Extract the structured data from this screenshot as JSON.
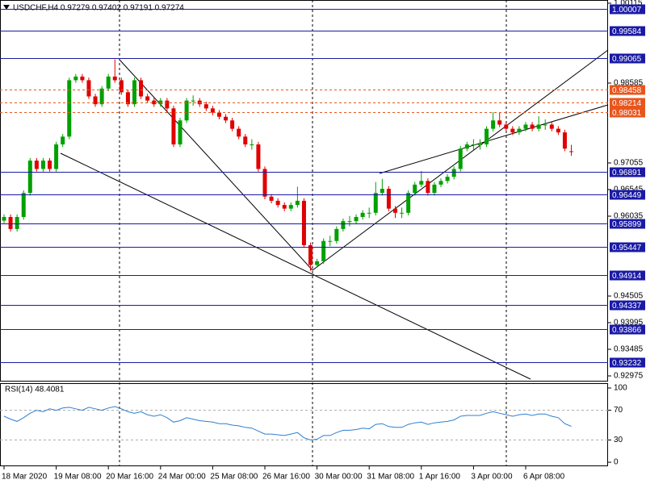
{
  "chart_data": [
    {
      "type": "candlestick",
      "title": "USDCHF,H4  0.97279 0.97402 0.97191 0.97274",
      "categories": [
        "18 Mar 2020",
        null,
        null,
        null,
        null,
        null,
        null,
        null,
        "19 Mar 08:00",
        null,
        null,
        null,
        null,
        null,
        null,
        null,
        "20 Mar 16:00",
        null,
        null,
        null,
        null,
        null,
        null,
        null,
        "24 Mar 00:00",
        null,
        null,
        null,
        null,
        null,
        null,
        null,
        "25 Mar 08:00",
        null,
        null,
        null,
        null,
        null,
        null,
        null,
        "26 Mar 16:00",
        null,
        null,
        null,
        null,
        null,
        null,
        null,
        "30 Mar 00:00",
        null,
        null,
        null,
        null,
        null,
        null,
        null,
        "31 Mar 08:00",
        null,
        null,
        null,
        null,
        null,
        null,
        null,
        "1 Apr 16:00",
        null,
        null,
        null,
        null,
        null,
        null,
        null,
        "3 Apr 00:00",
        null,
        null,
        null,
        null,
        null,
        null,
        null,
        "6 Apr 08:00",
        null,
        null,
        null,
        null,
        null,
        null,
        null
      ],
      "series": [
        {
          "up_color": "#00a000",
          "down_color": "#e00000",
          "open": [
            0.9595,
            0.9602,
            0.9579,
            0.9602,
            0.9648,
            0.971,
            0.9694,
            0.971,
            0.9694,
            0.9741,
            0.9756,
            0.9864,
            0.9871,
            0.9864,
            0.9833,
            0.9818,
            0.9848,
            0.9871,
            0.9864,
            0.9841,
            0.9818,
            0.9864,
            0.9833,
            0.9825,
            0.9818,
            0.9825,
            0.981,
            0.9741,
            0.9787,
            0.9825,
            0.9825,
            0.9818,
            0.981,
            0.9802,
            0.9794,
            0.9787,
            0.9771,
            0.9756,
            0.9741,
            0.9741,
            0.9694,
            0.9641,
            0.9633,
            0.9625,
            0.9618,
            0.9625,
            0.9633,
            0.9548,
            0.951,
            0.9517,
            0.9556,
            0.9556,
            0.9579,
            0.9594,
            0.9594,
            0.9602,
            0.961,
            0.961,
            0.9648,
            0.9656,
            0.9618,
            0.961,
            0.961,
            0.9648,
            0.9664,
            0.9671,
            0.9648,
            0.9664,
            0.9671,
            0.9679,
            0.9694,
            0.9733,
            0.9741,
            0.9741,
            0.9741,
            0.9771,
            0.9787,
            0.9779,
            0.9771,
            0.9764,
            0.9771,
            0.9779,
            0.9771,
            0.9779,
            0.9779,
            0.9771,
            0.9764,
            0.97279
          ],
          "high": [
            0.9607,
            0.9607,
            0.9607,
            0.9653,
            0.9715,
            0.9715,
            0.9715,
            0.9715,
            0.9746,
            0.9761,
            0.9869,
            0.9876,
            0.9876,
            0.9869,
            0.9838,
            0.9853,
            0.9876,
            0.9904,
            0.9869,
            0.9846,
            0.9869,
            0.9869,
            0.9838,
            0.983,
            0.983,
            0.983,
            0.9815,
            0.9792,
            0.983,
            0.9835,
            0.983,
            0.9823,
            0.9815,
            0.9807,
            0.9799,
            0.9792,
            0.9776,
            0.9761,
            0.9751,
            0.9746,
            0.9699,
            0.9646,
            0.9638,
            0.963,
            0.963,
            0.966,
            0.9638,
            0.9553,
            0.9522,
            0.9561,
            0.9566,
            0.9584,
            0.9599,
            0.9604,
            0.9607,
            0.9615,
            0.962,
            0.9669,
            0.9675,
            0.9661,
            0.9623,
            0.962,
            0.9653,
            0.9669,
            0.969,
            0.9676,
            0.9669,
            0.9676,
            0.9684,
            0.9699,
            0.9738,
            0.9746,
            0.9751,
            0.9751,
            0.9776,
            0.9803,
            0.9803,
            0.9784,
            0.9776,
            0.9776,
            0.9784,
            0.9784,
            0.9795,
            0.9789,
            0.9784,
            0.9776,
            0.9769,
            0.97402
          ],
          "low": [
            0.959,
            0.9574,
            0.9574,
            0.9597,
            0.9643,
            0.9689,
            0.9689,
            0.9689,
            0.9689,
            0.9736,
            0.9751,
            0.9859,
            0.9859,
            0.9828,
            0.9813,
            0.9813,
            0.9843,
            0.9859,
            0.9836,
            0.9813,
            0.9813,
            0.9828,
            0.982,
            0.9813,
            0.9813,
            0.9805,
            0.9736,
            0.9736,
            0.9782,
            0.9815,
            0.9813,
            0.9805,
            0.9797,
            0.9789,
            0.9782,
            0.9766,
            0.9751,
            0.9736,
            0.9731,
            0.9689,
            0.9636,
            0.9628,
            0.962,
            0.9613,
            0.9613,
            0.962,
            0.9543,
            0.9499,
            0.9505,
            0.9512,
            0.9546,
            0.9551,
            0.9574,
            0.9584,
            0.9589,
            0.9597,
            0.96,
            0.9605,
            0.9643,
            0.9613,
            0.96,
            0.96,
            0.9605,
            0.9643,
            0.9659,
            0.9643,
            0.9643,
            0.9659,
            0.9666,
            0.9674,
            0.9689,
            0.9728,
            0.9731,
            0.9731,
            0.9736,
            0.9766,
            0.9774,
            0.9766,
            0.9759,
            0.9759,
            0.9766,
            0.9766,
            0.9766,
            0.9769,
            0.9766,
            0.9759,
            0.9728,
            0.97191
          ],
          "close": [
            0.9602,
            0.9579,
            0.9602,
            0.9648,
            0.971,
            0.9694,
            0.971,
            0.9694,
            0.9741,
            0.9756,
            0.9864,
            0.9871,
            0.9864,
            0.9833,
            0.9818,
            0.9848,
            0.9871,
            0.9864,
            0.9841,
            0.9818,
            0.9864,
            0.9833,
            0.9825,
            0.9818,
            0.9825,
            0.981,
            0.9741,
            0.9787,
            0.9825,
            0.9825,
            0.9818,
            0.981,
            0.9802,
            0.9794,
            0.9787,
            0.9771,
            0.9756,
            0.9741,
            0.9741,
            0.9694,
            0.9641,
            0.9633,
            0.9625,
            0.9618,
            0.9625,
            0.9633,
            0.9548,
            0.951,
            0.9517,
            0.9556,
            0.9556,
            0.9579,
            0.9594,
            0.9594,
            0.9602,
            0.961,
            0.961,
            0.9648,
            0.9656,
            0.9618,
            0.961,
            0.961,
            0.9648,
            0.9664,
            0.9671,
            0.9648,
            0.9664,
            0.9671,
            0.9679,
            0.9694,
            0.9733,
            0.9741,
            0.9741,
            0.9741,
            0.9771,
            0.9787,
            0.9779,
            0.9771,
            0.9764,
            0.9771,
            0.9779,
            0.9771,
            0.9779,
            0.9779,
            0.9771,
            0.9764,
            0.9733,
            0.97274
          ]
        }
      ],
      "ylim": [
        0.92867,
        1.00177
      ],
      "yticks": [
        1.00115,
        0.98585,
        0.97055,
        0.96545,
        0.96035,
        0.94505,
        0.93995,
        0.93485,
        0.92975
      ],
      "levels": [
        {
          "value": 1.00007,
          "color": "#1a1aa6",
          "style": "solid"
        },
        {
          "value": 0.99584,
          "color": "#1a1aa6",
          "style": "solid"
        },
        {
          "value": 0.99065,
          "color": "#1a1aa6",
          "style": "solid"
        },
        {
          "value": 0.98458,
          "color": "#e8561e",
          "style": "dotted"
        },
        {
          "value": 0.98214,
          "color": "#e8561e",
          "style": "dotted"
        },
        {
          "value": 0.98031,
          "color": "#e8561e",
          "style": "dotted"
        },
        {
          "value": 0.96891,
          "color": "#1a1aa6",
          "style": "solid"
        },
        {
          "value": 0.96449,
          "color": "#1a1aa6",
          "style": "solid"
        },
        {
          "value": 0.95899,
          "color": "#1a1aa6",
          "style": "solid"
        },
        {
          "value": 0.95447,
          "color": "#1a1aa6",
          "style": "solid"
        },
        {
          "value": 0.94914,
          "color": "#1a1aa6",
          "style": "solid"
        },
        {
          "value": 0.94337,
          "color": "#1a1aa6",
          "style": "solid"
        },
        {
          "value": 0.93866,
          "color": "#1a1aa6",
          "style": "solid"
        },
        {
          "value": 0.93232,
          "color": "#1a1aa6",
          "style": "solid"
        }
      ]
    },
    {
      "type": "line",
      "title": "RSI(14) 48.4081",
      "series": [
        {
          "color": "#2f7fd0",
          "values": [
            62,
            58,
            55,
            60,
            66,
            70,
            68,
            72,
            70,
            73,
            74,
            72,
            70,
            74,
            72,
            70,
            73,
            75,
            72,
            68,
            66,
            68,
            64,
            62,
            64,
            60,
            54,
            56,
            60,
            58,
            56,
            55,
            54,
            52,
            52,
            50,
            49,
            47,
            46,
            42,
            38,
            38,
            37,
            36,
            38,
            40,
            33,
            30,
            31,
            36,
            36,
            40,
            43,
            43,
            44,
            46,
            45,
            51,
            52,
            48,
            47,
            47,
            51,
            53,
            54,
            51,
            53,
            54,
            55,
            57,
            62,
            63,
            63,
            63,
            66,
            68,
            66,
            64,
            62,
            64,
            65,
            63,
            65,
            65,
            62,
            60,
            52,
            48.4081
          ]
        }
      ],
      "ylim": [
        -5.4,
        106.5
      ],
      "yticks": [
        100,
        70,
        30,
        0
      ]
    }
  ]
}
